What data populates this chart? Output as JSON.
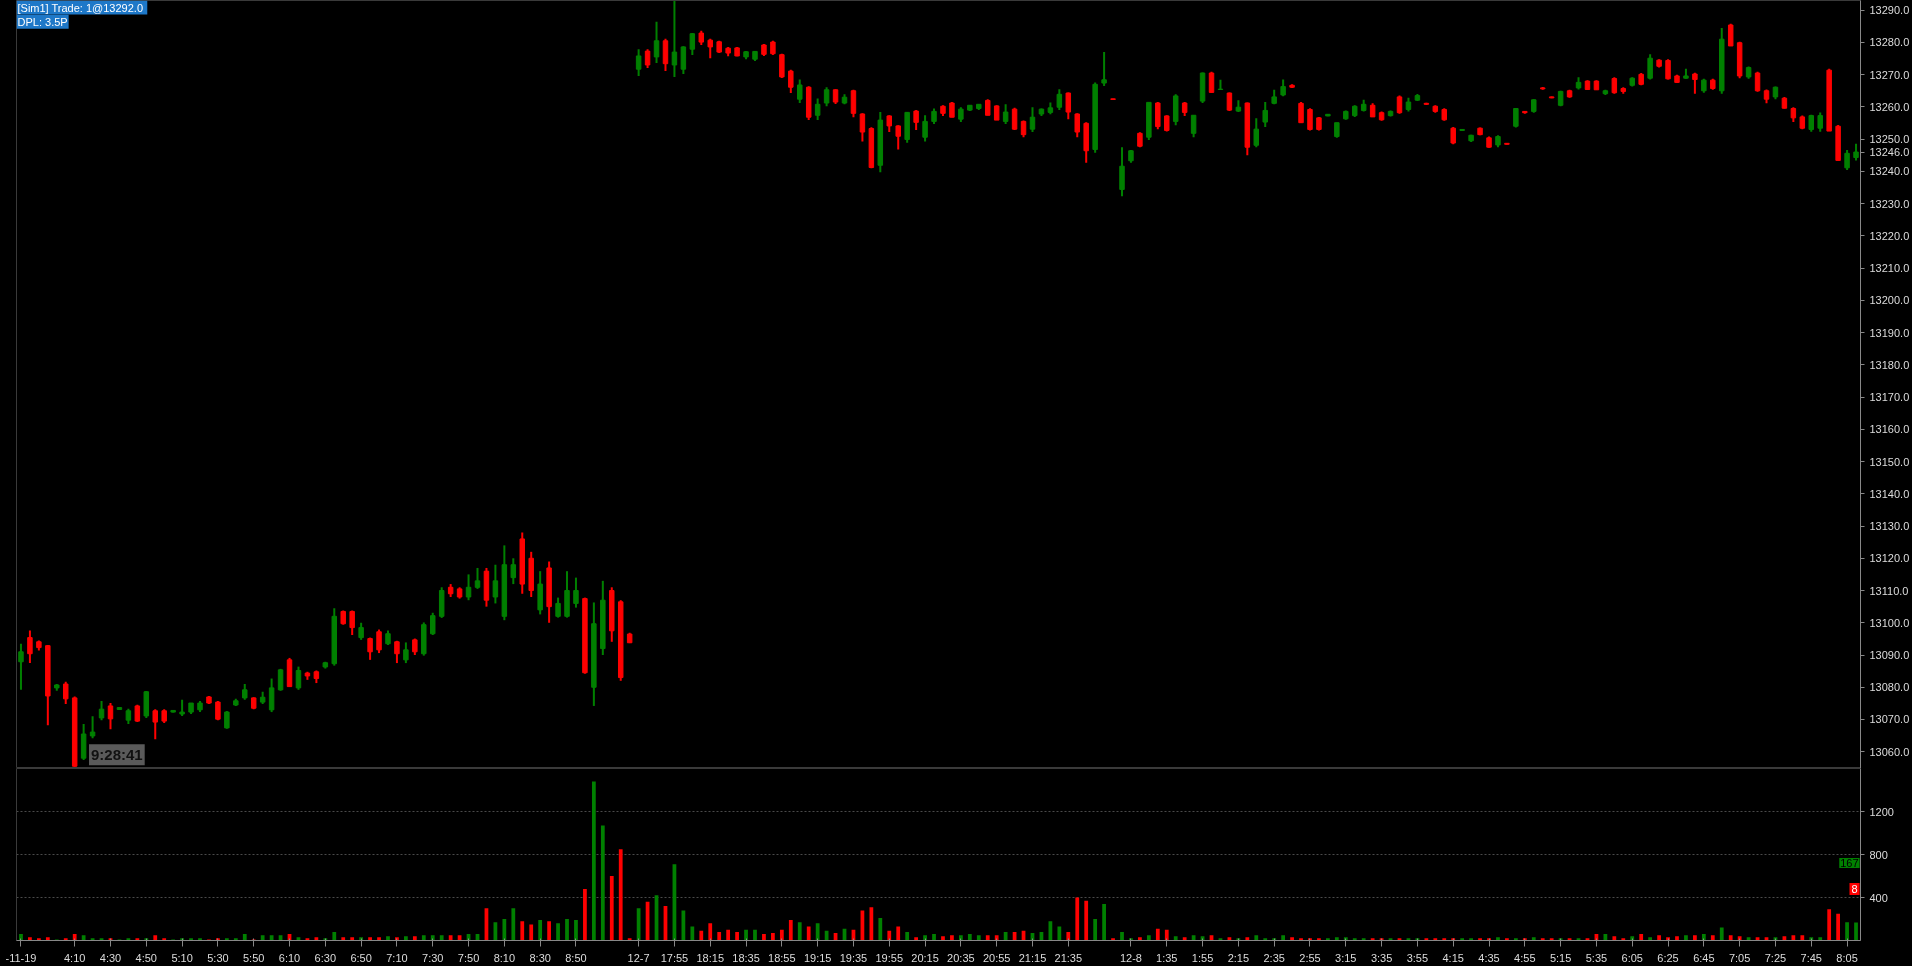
{
  "chart_data": [
    {
      "type": "candlestick",
      "annotations": [
        "[Sim1]  Trade: 1@13292.0",
        "DPL: 3.5P",
        "9:28:41"
      ],
      "categories": [
        "-11-19",
        null,
        null,
        null,
        null,
        null,
        "4:10",
        null,
        null,
        null,
        "4:30",
        null,
        null,
        null,
        "4:50",
        null,
        null,
        null,
        "5:10",
        null,
        null,
        null,
        "5:30",
        null,
        null,
        null,
        "5:50",
        null,
        null,
        null,
        "6:10",
        null,
        null,
        null,
        "6:30",
        null,
        null,
        null,
        "6:50",
        null,
        null,
        null,
        "7:10",
        null,
        null,
        null,
        "7:30",
        null,
        null,
        null,
        "7:50",
        null,
        null,
        null,
        "8:10",
        null,
        null,
        null,
        "8:30",
        null,
        null,
        null,
        "8:50",
        null,
        null,
        null,
        null,
        null,
        null,
        "12-7",
        null,
        null,
        null,
        "17:55",
        null,
        null,
        null,
        "18:15",
        null,
        null,
        null,
        "18:35",
        null,
        null,
        null,
        "18:55",
        null,
        null,
        null,
        "19:15",
        null,
        null,
        null,
        "19:35",
        null,
        null,
        null,
        "19:55",
        null,
        null,
        null,
        "20:15",
        null,
        null,
        null,
        "20:35",
        null,
        null,
        null,
        "20:55",
        null,
        null,
        null,
        "21:15",
        null,
        null,
        null,
        "21:35",
        null,
        null,
        null,
        null,
        null,
        null,
        "12-8",
        null,
        null,
        null,
        "1:35",
        null,
        null,
        null,
        "1:55",
        null,
        null,
        null,
        "2:15",
        null,
        null,
        null,
        "2:35",
        null,
        null,
        null,
        "2:55",
        null,
        null,
        null,
        "3:15",
        null,
        null,
        null,
        "3:35",
        null,
        null,
        null,
        "3:55",
        null,
        null,
        null,
        "4:15",
        null,
        null,
        null,
        "4:35",
        null,
        null,
        null,
        "4:55",
        null,
        null,
        null,
        "5:15",
        null,
        null,
        null,
        "5:35",
        null,
        null,
        null,
        "6:05",
        null,
        null,
        null,
        "6:25",
        null,
        null,
        null,
        "6:45",
        null,
        null,
        null,
        "7:05",
        null,
        null,
        null,
        "7:25",
        null,
        null,
        null,
        "7:45",
        null,
        null,
        null,
        "8:05",
        null
      ],
      "ohlc": [
        [
          13087.9,
          13093.5,
          13079.2,
          13091.0
        ],
        [
          13095.4,
          13097.6,
          13087.5,
          13090.4
        ],
        [
          13094.1,
          13094.5,
          13091.4,
          13092.3
        ],
        [
          13092.9,
          13093.1,
          13068.2,
          13077.3
        ],
        [
          13079.8,
          13081.0,
          13078.9,
          13080.7
        ],
        [
          13081.0,
          13081.7,
          13074.8,
          13076.4
        ],
        [
          13076.7,
          13077.1,
          13055.3,
          13055.5
        ],
        [
          13058.0,
          13068.6,
          13057.4,
          13065.5
        ],
        [
          13064.9,
          13071.0,
          13064.2,
          13066.1
        ],
        [
          13070.5,
          13075.7,
          13069.8,
          13073.2
        ],
        [
          13074.2,
          13075.1,
          13067.0,
          13070.2
        ],
        [
          13073.1,
          13073.8,
          13073.0,
          13073.7
        ],
        [
          13069.8,
          13073.3,
          13068.6,
          13072.7
        ],
        [
          13074.2,
          13074.6,
          13069.2,
          13069.5
        ],
        [
          13071.1,
          13078.8,
          13070.5,
          13078.6
        ],
        [
          13072.7,
          13073.2,
          13063.9,
          13069.2
        ],
        [
          13072.7,
          13073.2,
          13068.9,
          13069.5
        ],
        [
          13072.3,
          13072.9,
          13072.2,
          13072.8
        ],
        [
          13071.7,
          13076.1,
          13071.1,
          13072.3
        ],
        [
          13072.3,
          13075.1,
          13071.7,
          13075.1
        ],
        [
          13073.0,
          13075.7,
          13072.3,
          13075.1
        ],
        [
          13077.0,
          13077.3,
          13074.8,
          13075.1
        ],
        [
          13075.4,
          13075.7,
          13069.8,
          13070.1
        ],
        [
          13067.4,
          13072.6,
          13067.1,
          13072.3
        ],
        [
          13074.5,
          13076.4,
          13074.2,
          13075.8
        ],
        [
          13076.7,
          13081.0,
          13076.1,
          13079.2
        ],
        [
          13076.7,
          13076.9,
          13073.2,
          13073.5
        ],
        [
          13075.4,
          13078.6,
          13074.8,
          13076.9
        ],
        [
          13073.0,
          13082.7,
          13072.3,
          13079.8
        ],
        [
          13079.2,
          13085.7,
          13078.9,
          13085.4
        ],
        [
          13088.5,
          13089.1,
          13080.2,
          13080.2
        ],
        [
          13079.8,
          13086.4,
          13079.2,
          13085.2
        ],
        [
          13084.4,
          13084.8,
          13082.3,
          13083.5
        ],
        [
          13084.8,
          13085.2,
          13081.3,
          13082.7
        ],
        [
          13086.3,
          13087.9,
          13085.8,
          13087.6
        ],
        [
          13087.3,
          13104.5,
          13086.7,
          13102.0
        ],
        [
          13103.5,
          13103.8,
          13099.4,
          13099.7
        ],
        [
          13103.5,
          13103.8,
          13096.2,
          13098.5
        ],
        [
          13095.4,
          13100.0,
          13094.7,
          13098.5
        ],
        [
          13095.1,
          13095.4,
          13088.5,
          13091.0
        ],
        [
          13097.2,
          13097.9,
          13090.6,
          13091.6
        ],
        [
          13093.5,
          13097.6,
          13093.1,
          13096.6
        ],
        [
          13094.1,
          13094.4,
          13087.5,
          13090.4
        ],
        [
          13088.5,
          13093.9,
          13087.5,
          13091.6
        ],
        [
          13094.7,
          13095.1,
          13090.0,
          13091.0
        ],
        [
          13090.4,
          13100.1,
          13089.8,
          13099.4
        ],
        [
          13096.6,
          13103.1,
          13096.2,
          13102.2
        ],
        [
          13102.0,
          13111.0,
          13101.5,
          13110.0
        ],
        [
          13111.0,
          13112.0,
          13108.0,
          13109.0
        ],
        [
          13110.5,
          13111.0,
          13107.5,
          13108.0
        ],
        [
          13108.0,
          13115.0,
          13107.0,
          13111.0
        ],
        [
          13111.0,
          13117.0,
          13110.5,
          13113.0
        ],
        [
          13116.0,
          13117.0,
          13105.0,
          13107.0
        ],
        [
          13108.0,
          13118.0,
          13106.0,
          13113.0
        ],
        [
          13102.0,
          13124.0,
          13100.8,
          13118.0
        ],
        [
          13114.0,
          13120.0,
          13112.0,
          13118.0
        ],
        [
          13126.0,
          13128.0,
          13109.0,
          13112.0
        ],
        [
          13120.0,
          13122.0,
          13108.0,
          13110.0
        ],
        [
          13104.0,
          13116.0,
          13102.6,
          13112.0
        ],
        [
          13117.0,
          13119.0,
          13100.0,
          13105.0
        ],
        [
          13102.0,
          13107.8,
          13101.6,
          13106.0
        ],
        [
          13102.0,
          13116.0,
          13101.6,
          13110.0
        ],
        [
          13106.0,
          13114.0,
          13104.7,
          13110.0
        ],
        [
          13107.5,
          13107.8,
          13084.2,
          13084.5
        ],
        [
          13080.0,
          13106.3,
          13074.2,
          13099.7
        ],
        [
          13092.0,
          13113.0,
          13090.0,
          13107.0
        ],
        [
          13110.0,
          13111.0,
          13094.1,
          13097.5
        ],
        [
          13106.5,
          13107.0,
          13082.0,
          13083.0
        ],
        [
          13096.5,
          13096.9,
          13093.7,
          13093.8
        ],
        [
          13271.7,
          13277.9,
          13269.6,
          13275.8
        ],
        [
          13277.3,
          13277.9,
          13272.1,
          13273.0
        ],
        [
          13275.5,
          13286.4,
          13273.6,
          13280.5
        ],
        [
          13280.5,
          13281.1,
          13271.1,
          13273.4
        ],
        [
          13273.0,
          13292.9,
          13269.3,
          13277.0
        ],
        [
          13271.7,
          13278.8,
          13270.2,
          13278.6
        ],
        [
          13277.9,
          13282.9,
          13276.1,
          13282.7
        ],
        [
          13282.9,
          13283.6,
          13279.2,
          13280.1
        ],
        [
          13280.7,
          13281.1,
          13275.1,
          13278.6
        ],
        [
          13280.2,
          13280.5,
          13276.7,
          13277.0
        ],
        [
          13278.2,
          13278.6,
          13275.7,
          13276.7
        ],
        [
          13278.3,
          13278.6,
          13275.7,
          13275.8
        ],
        [
          13275.5,
          13277.3,
          13274.8,
          13277.1
        ],
        [
          13274.8,
          13277.3,
          13274.2,
          13277.2
        ],
        [
          13279.2,
          13279.5,
          13275.8,
          13276.3
        ],
        [
          13280.1,
          13280.5,
          13276.1,
          13276.5
        ],
        [
          13276.2,
          13276.5,
          13269.0,
          13269.3
        ],
        [
          13271.1,
          13271.5,
          13264.3,
          13266.1
        ],
        [
          13262.4,
          13268.5,
          13261.2,
          13266.8
        ],
        [
          13266.1,
          13266.4,
          13255.9,
          13256.8
        ],
        [
          13257.4,
          13262.6,
          13255.9,
          13260.8
        ],
        [
          13261.2,
          13266.1,
          13260.2,
          13265.3
        ],
        [
          13265.3,
          13265.5,
          13260.9,
          13261.5
        ],
        [
          13261.2,
          13263.9,
          13260.8,
          13263.0
        ],
        [
          13265.0,
          13265.3,
          13256.8,
          13258.0
        ],
        [
          13257.8,
          13258.0,
          13249.3,
          13252.2
        ],
        [
          13253.3,
          13253.7,
          13241.0,
          13241.2
        ],
        [
          13241.9,
          13258.4,
          13239.7,
          13255.9
        ],
        [
          13257.2,
          13257.4,
          13252.2,
          13254.1
        ],
        [
          13254.1,
          13254.3,
          13246.8,
          13250.9
        ],
        [
          13249.9,
          13258.4,
          13248.9,
          13258.3
        ],
        [
          13258.7,
          13259.0,
          13252.8,
          13255.2
        ],
        [
          13250.6,
          13257.4,
          13249.3,
          13255.5
        ],
        [
          13255.5,
          13259.5,
          13254.7,
          13258.6
        ],
        [
          13260.2,
          13260.5,
          13257.2,
          13258.0
        ],
        [
          13261.2,
          13261.5,
          13256.8,
          13256.8
        ],
        [
          13256.2,
          13259.9,
          13255.3,
          13259.3
        ],
        [
          13259.0,
          13260.5,
          13258.7,
          13260.5
        ],
        [
          13259.5,
          13260.8,
          13259.0,
          13260.8
        ],
        [
          13262.0,
          13262.4,
          13257.4,
          13257.4
        ],
        [
          13260.3,
          13260.5,
          13255.9,
          13255.9
        ],
        [
          13255.5,
          13260.8,
          13254.7,
          13258.4
        ],
        [
          13259.3,
          13259.7,
          13252.8,
          13253.1
        ],
        [
          13255.5,
          13255.8,
          13250.6,
          13251.4
        ],
        [
          13253.1,
          13259.9,
          13252.2,
          13256.8
        ],
        [
          13257.8,
          13259.5,
          13257.2,
          13259.3
        ],
        [
          13258.3,
          13261.4,
          13257.7,
          13259.7
        ],
        [
          13259.9,
          13265.5,
          13259.0,
          13263.9
        ],
        [
          13264.3,
          13264.5,
          13256.2,
          13258.4
        ],
        [
          13257.8,
          13258.0,
          13250.6,
          13252.2
        ],
        [
          13254.9,
          13255.2,
          13242.7,
          13246.4
        ],
        [
          13246.8,
          13267.6,
          13245.8,
          13267.0
        ],
        [
          13267.4,
          13277.0,
          13266.5,
          13268.4
        ],
        [
          13262.5,
          13262.5,
          13262.3,
          13262.3
        ],
        [
          13234.4,
          13247.5,
          13232.3,
          13241.6
        ],
        [
          13243.3,
          13246.6,
          13242.7,
          13246.4
        ],
        [
          13251.8,
          13252.1,
          13247.5,
          13247.8
        ],
        [
          13250.6,
          13261.4,
          13249.7,
          13261.4
        ],
        [
          13261.2,
          13261.5,
          13253.1,
          13253.9
        ],
        [
          13257.2,
          13257.4,
          13252.4,
          13252.7
        ],
        [
          13255.5,
          13263.9,
          13254.3,
          13263.4
        ],
        [
          13261.2,
          13261.5,
          13257.2,
          13258.3
        ],
        [
          13251.8,
          13257.4,
          13250.6,
          13257.4
        ],
        [
          13261.8,
          13270.7,
          13261.2,
          13270.5
        ],
        [
          13270.5,
          13270.9,
          13264.5,
          13264.5
        ],
        [
          13265.4,
          13268.4,
          13265.3,
          13265.5
        ],
        [
          13264.3,
          13264.5,
          13258.7,
          13259.0
        ],
        [
          13258.7,
          13262.1,
          13258.4,
          13259.9
        ],
        [
          13261.2,
          13261.4,
          13245.0,
          13247.5
        ],
        [
          13248.1,
          13256.5,
          13247.5,
          13253.1
        ],
        [
          13255.3,
          13261.5,
          13253.8,
          13258.9
        ],
        [
          13261.1,
          13265.3,
          13260.8,
          13263.1
        ],
        [
          13263.7,
          13268.5,
          13263.3,
          13266.3
        ],
        [
          13266.7,
          13267.0,
          13265.9,
          13266.1
        ],
        [
          13261.1,
          13261.5,
          13255.1,
          13255.1
        ],
        [
          13259.2,
          13259.6,
          13252.7,
          13253.0
        ],
        [
          13256.6,
          13256.9,
          13252.7,
          13253.0
        ],
        [
          13257.2,
          13257.8,
          13257.1,
          13257.7
        ],
        [
          13250.8,
          13255.1,
          13250.4,
          13255.1
        ],
        [
          13256.3,
          13258.9,
          13256.0,
          13258.6
        ],
        [
          13257.3,
          13260.5,
          13256.9,
          13260.2
        ],
        [
          13258.9,
          13262.2,
          13258.6,
          13260.8
        ],
        [
          13260.5,
          13261.1,
          13256.9,
          13256.9
        ],
        [
          13258.2,
          13258.6,
          13255.7,
          13256.0
        ],
        [
          13257.3,
          13258.9,
          13257.0,
          13258.6
        ],
        [
          13263.1,
          13263.5,
          13257.9,
          13258.2
        ],
        [
          13259.2,
          13262.8,
          13258.6,
          13261.5
        ],
        [
          13262.1,
          13264.0,
          13261.8,
          13263.5
        ],
        [
          13261.1,
          13261.3,
          13260.6,
          13260.8
        ],
        [
          13260.2,
          13260.5,
          13258.2,
          13258.6
        ],
        [
          13259.2,
          13259.6,
          13255.7,
          13256.0
        ],
        [
          13253.4,
          13253.8,
          13248.4,
          13248.8
        ],
        [
          13252.7,
          13253.1,
          13252.6,
          13253.0
        ],
        [
          13249.5,
          13251.4,
          13249.1,
          13251.2
        ],
        [
          13253.4,
          13253.6,
          13251.2,
          13251.4
        ],
        [
          13250.4,
          13250.8,
          13247.3,
          13247.5
        ],
        [
          13248.2,
          13251.2,
          13247.5,
          13250.8
        ],
        [
          13248.7,
          13248.8,
          13248.3,
          13248.4
        ],
        [
          13254.0,
          13259.6,
          13253.6,
          13259.5
        ],
        [
          13258.6,
          13258.7,
          13257.9,
          13258.2
        ],
        [
          13258.6,
          13262.4,
          13258.2,
          13262.2
        ],
        [
          13265.9,
          13266.2,
          13265.3,
          13265.6
        ],
        [
          13263.1,
          13263.2,
          13262.7,
          13262.8
        ],
        [
          13260.5,
          13265.0,
          13260.2,
          13264.8
        ],
        [
          13265.0,
          13265.3,
          13262.8,
          13263.1
        ],
        [
          13265.9,
          13269.2,
          13265.4,
          13267.6
        ],
        [
          13268.0,
          13268.3,
          13265.4,
          13265.4
        ],
        [
          13268.0,
          13268.3,
          13265.3,
          13265.3
        ],
        [
          13264.1,
          13265.3,
          13263.7,
          13265.0
        ],
        [
          13268.8,
          13269.2,
          13264.1,
          13264.4
        ],
        [
          13265.7,
          13266.1,
          13264.1,
          13264.8
        ],
        [
          13266.7,
          13269.2,
          13266.3,
          13268.9
        ],
        [
          13270.1,
          13270.5,
          13266.7,
          13267.0
        ],
        [
          13268.9,
          13276.3,
          13268.5,
          13275.1
        ],
        [
          13274.5,
          13274.8,
          13272.2,
          13272.6
        ],
        [
          13274.4,
          13274.8,
          13268.5,
          13268.7
        ],
        [
          13269.6,
          13270.0,
          13267.4,
          13267.6
        ],
        [
          13268.9,
          13271.8,
          13268.7,
          13269.6
        ],
        [
          13270.2,
          13270.6,
          13264.1,
          13268.5
        ],
        [
          13265.0,
          13268.7,
          13264.4,
          13268.3
        ],
        [
          13268.3,
          13268.7,
          13265.3,
          13265.7
        ],
        [
          13265.0,
          13284.5,
          13264.1,
          13281.0
        ],
        [
          13285.4,
          13285.8,
          13278.9,
          13278.9
        ],
        [
          13279.9,
          13280.2,
          13268.9,
          13269.6
        ],
        [
          13269.3,
          13272.5,
          13268.7,
          13272.2
        ],
        [
          13270.5,
          13270.9,
          13264.7,
          13265.0
        ],
        [
          13265.0,
          13265.4,
          13261.1,
          13262.4
        ],
        [
          13263.1,
          13266.3,
          13262.4,
          13266.1
        ],
        [
          13262.7,
          13263.1,
          13259.5,
          13259.6
        ],
        [
          13259.5,
          13259.9,
          13255.3,
          13256.6
        ],
        [
          13256.9,
          13257.3,
          13253.1,
          13253.4
        ],
        [
          13253.0,
          13257.6,
          13252.3,
          13257.3
        ],
        [
          13253.4,
          13258.3,
          13252.3,
          13257.3
        ],
        [
          13271.4,
          13271.8,
          13252.5,
          13252.5
        ],
        [
          13254.0,
          13254.4,
          13243.4,
          13243.4
        ],
        [
          13241.1,
          13246.6,
          13240.4,
          13245.6
        ],
        [
          13244.3,
          13248.6,
          13243.4,
          13246.0
        ]
      ],
      "colors": [
        "#008000",
        "#ff0000",
        "#ff0000",
        "#ff0000",
        "#008000",
        "#ff0000",
        "#ff0000",
        "#008000",
        "#008000",
        "#008000",
        "#ff0000",
        "#008000",
        "#008000",
        "#ff0000",
        "#008000",
        "#ff0000",
        "#ff0000",
        "#008000",
        "#008000",
        "#008000",
        "#008000",
        "#ff0000",
        "#ff0000",
        "#008000",
        "#008000",
        "#008000",
        "#ff0000",
        "#008000",
        "#008000",
        "#008000",
        "#ff0000",
        "#008000",
        "#ff0000",
        "#ff0000",
        "#008000",
        "#008000",
        "#ff0000",
        "#ff0000",
        "#008000",
        "#ff0000",
        "#ff0000",
        "#008000",
        "#ff0000",
        "#008000",
        "#ff0000",
        "#008000",
        "#008000",
        "#008000",
        "#ff0000",
        "#ff0000",
        "#008000",
        "#008000",
        "#ff0000",
        "#008000",
        "#008000",
        "#008000",
        "#ff0000",
        "#ff0000",
        "#008000",
        "#ff0000",
        "#008000",
        "#008000",
        "#008000",
        "#ff0000",
        "#008000",
        "#008000",
        "#ff0000",
        "#ff0000",
        "#ff0000",
        "#008000",
        "#ff0000",
        "#008000",
        "#ff0000",
        "#008000",
        "#008000",
        "#008000",
        "#ff0000",
        "#ff0000",
        "#ff0000",
        "#ff0000",
        "#ff0000",
        "#008000",
        "#008000",
        "#ff0000",
        "#ff0000",
        "#ff0000",
        "#ff0000",
        "#008000",
        "#ff0000",
        "#008000",
        "#008000",
        "#ff0000",
        "#008000",
        "#ff0000",
        "#ff0000",
        "#ff0000",
        "#008000",
        "#ff0000",
        "#ff0000",
        "#008000",
        "#ff0000",
        "#008000",
        "#008000",
        "#ff0000",
        "#ff0000",
        "#008000",
        "#008000",
        "#008000",
        "#ff0000",
        "#ff0000",
        "#008000",
        "#ff0000",
        "#ff0000",
        "#008000",
        "#008000",
        "#008000",
        "#008000",
        "#ff0000",
        "#ff0000",
        "#ff0000",
        "#008000",
        "#008000",
        "#ff0000",
        "#008000",
        "#008000",
        "#ff0000",
        "#008000",
        "#ff0000",
        "#ff0000",
        "#008000",
        "#ff0000",
        "#008000",
        "#008000",
        "#ff0000",
        "#008000",
        "#ff0000",
        "#008000",
        "#ff0000",
        "#008000",
        "#008000",
        "#008000",
        "#008000",
        "#ff0000",
        "#ff0000",
        "#ff0000",
        "#ff0000",
        "#008000",
        "#008000",
        "#008000",
        "#008000",
        "#008000",
        "#ff0000",
        "#ff0000",
        "#008000",
        "#ff0000",
        "#008000",
        "#008000",
        "#ff0000",
        "#ff0000",
        "#ff0000",
        "#ff0000",
        "#008000",
        "#008000",
        "#ff0000",
        "#ff0000",
        "#008000",
        "#ff0000",
        "#008000",
        "#ff0000",
        "#008000",
        "#ff0000",
        "#ff0000",
        "#008000",
        "#ff0000",
        "#008000",
        "#ff0000",
        "#ff0000",
        "#008000",
        "#ff0000",
        "#ff0000",
        "#008000",
        "#ff0000",
        "#008000",
        "#ff0000",
        "#ff0000",
        "#ff0000",
        "#008000",
        "#ff0000",
        "#008000",
        "#ff0000",
        "#008000",
        "#ff0000",
        "#ff0000",
        "#008000",
        "#ff0000",
        "#ff0000",
        "#008000",
        "#ff0000",
        "#ff0000",
        "#ff0000",
        "#008000",
        "#008000",
        "#ff0000",
        "#ff0000",
        "#008000",
        "#008000"
      ],
      "ylim": [
        13054.8,
        13293
      ],
      "yticks": [
        {
          "value": 13060,
          "label": "13060.0"
        },
        {
          "value": 13070,
          "label": "13070.0"
        },
        {
          "value": 13080,
          "label": "13080.0"
        },
        {
          "value": 13090,
          "label": "13090.0"
        },
        {
          "value": 13100,
          "label": "13100.0"
        },
        {
          "value": 13110,
          "label": "13110.0"
        },
        {
          "value": 13120,
          "label": "13120.0"
        },
        {
          "value": 13130,
          "label": "13130.0"
        },
        {
          "value": 13140,
          "label": "13140.0"
        },
        {
          "value": 13150,
          "label": "13150.0"
        },
        {
          "value": 13160,
          "label": "13160.0"
        },
        {
          "value": 13170,
          "label": "13170.0"
        },
        {
          "value": 13180,
          "label": "13180.0"
        },
        {
          "value": 13190,
          "label": "13190.0"
        },
        {
          "value": 13200,
          "label": "13200.0"
        },
        {
          "value": 13210,
          "label": "13210.0"
        },
        {
          "value": 13220,
          "label": "13220.0"
        },
        {
          "value": 13230,
          "label": "13230.0"
        },
        {
          "value": 13240,
          "label": "13240.0"
        },
        {
          "value": 13246,
          "label": "13246.0"
        },
        {
          "value": 13250,
          "label": "13250.0"
        },
        {
          "value": 13260,
          "label": "13260.0"
        },
        {
          "value": 13270,
          "label": "13270.0"
        },
        {
          "value": 13280,
          "label": "13280.0"
        },
        {
          "value": 13290,
          "label": "13290.0"
        }
      ],
      "tick_labels": "y"
    },
    {
      "type": "bar",
      "annotations": [
        "167",
        "8"
      ],
      "categories": [
        "-11-19",
        null,
        null,
        null,
        null,
        null,
        "4:10",
        null,
        null,
        null,
        "4:30",
        null,
        null,
        null,
        "4:50",
        null,
        null,
        null,
        "5:10",
        null,
        null,
        null,
        "5:30",
        null,
        null,
        null,
        "5:50",
        null,
        null,
        null,
        "6:10",
        null,
        null,
        null,
        "6:30",
        null,
        null,
        null,
        "6:50",
        null,
        null,
        null,
        "7:10",
        null,
        null,
        null,
        "7:30",
        null,
        null,
        null,
        "7:50",
        null,
        null,
        null,
        "8:10",
        null,
        null,
        null,
        "8:30",
        null,
        null,
        null,
        "8:50",
        null,
        null,
        null,
        null,
        null,
        null,
        "12-7",
        null,
        null,
        null,
        "17:55",
        null,
        null,
        null,
        "18:15",
        null,
        null,
        null,
        "18:35",
        null,
        null,
        null,
        "18:55",
        null,
        null,
        null,
        "19:15",
        null,
        null,
        null,
        "19:35",
        null,
        null,
        null,
        "19:55",
        null,
        null,
        null,
        "20:15",
        null,
        null,
        null,
        "20:35",
        null,
        null,
        null,
        "20:55",
        null,
        null,
        null,
        "21:15",
        null,
        null,
        null,
        "21:35",
        null,
        null,
        null,
        null,
        null,
        null,
        "12-8",
        null,
        null,
        null,
        "1:35",
        null,
        null,
        null,
        "1:55",
        null,
        null,
        null,
        "2:15",
        null,
        null,
        null,
        "2:35",
        null,
        null,
        null,
        "2:55",
        null,
        null,
        null,
        "3:15",
        null,
        null,
        null,
        "3:35",
        null,
        null,
        null,
        "3:55",
        null,
        null,
        null,
        "4:15",
        null,
        null,
        null,
        "4:35",
        null,
        null,
        null,
        "4:55",
        null,
        null,
        null,
        "5:15",
        null,
        null,
        null,
        "5:35",
        null,
        null,
        null,
        "6:05",
        null,
        null,
        null,
        "6:25",
        null,
        null,
        null,
        "6:45",
        null,
        null,
        null,
        "7:05",
        null,
        null,
        null,
        "7:25",
        null,
        null,
        null,
        "7:45",
        null,
        null,
        null,
        "8:05",
        null
      ],
      "values": [
        60,
        30,
        20,
        30,
        10,
        20,
        60,
        50,
        20,
        20,
        20,
        10,
        20,
        20,
        20,
        50,
        20,
        10,
        20,
        20,
        20,
        10,
        20,
        20,
        20,
        60,
        10,
        50,
        50,
        50,
        60,
        30,
        20,
        30,
        20,
        80,
        30,
        30,
        30,
        30,
        30,
        40,
        30,
        40,
        40,
        50,
        50,
        50,
        50,
        50,
        60,
        60,
        300,
        170,
        200,
        300,
        180,
        150,
        190,
        180,
        160,
        200,
        190,
        480,
        1480,
        1070,
        600,
        850,
        20,
        300,
        360,
        420,
        320,
        710,
        280,
        130,
        90,
        160,
        80,
        100,
        80,
        100,
        100,
        60,
        70,
        100,
        190,
        170,
        130,
        160,
        90,
        70,
        110,
        100,
        280,
        310,
        210,
        90,
        130,
        80,
        30,
        50,
        60,
        40,
        50,
        50,
        60,
        50,
        50,
        50,
        80,
        80,
        90,
        70,
        80,
        180,
        130,
        80,
        400,
        370,
        200,
        340,
        20,
        80,
        20,
        30,
        50,
        110,
        100,
        40,
        30,
        50,
        40,
        50,
        20,
        30,
        20,
        30,
        50,
        20,
        20,
        50,
        30,
        20,
        20,
        20,
        20,
        30,
        30,
        20,
        20,
        20,
        20,
        20,
        20,
        20,
        20,
        20,
        20,
        20,
        20,
        20,
        20,
        20,
        20,
        30,
        20,
        20,
        20,
        30,
        20,
        20,
        20,
        20,
        20,
        20,
        60,
        60,
        40,
        20,
        40,
        60,
        30,
        50,
        30,
        40,
        50,
        50,
        60,
        50,
        120,
        50,
        40,
        30,
        30,
        30,
        30,
        40,
        50,
        50,
        30,
        30,
        290,
        250,
        170,
        167
      ],
      "colors": [
        "#008000",
        "#ff0000",
        "#ff0000",
        "#ff0000",
        "#008000",
        "#ff0000",
        "#ff0000",
        "#008000",
        "#008000",
        "#008000",
        "#ff0000",
        "#008000",
        "#008000",
        "#ff0000",
        "#008000",
        "#ff0000",
        "#ff0000",
        "#008000",
        "#008000",
        "#008000",
        "#008000",
        "#ff0000",
        "#ff0000",
        "#008000",
        "#008000",
        "#008000",
        "#ff0000",
        "#008000",
        "#008000",
        "#008000",
        "#ff0000",
        "#008000",
        "#ff0000",
        "#ff0000",
        "#008000",
        "#008000",
        "#ff0000",
        "#ff0000",
        "#008000",
        "#ff0000",
        "#ff0000",
        "#008000",
        "#ff0000",
        "#008000",
        "#ff0000",
        "#008000",
        "#008000",
        "#008000",
        "#ff0000",
        "#ff0000",
        "#008000",
        "#008000",
        "#ff0000",
        "#008000",
        "#008000",
        "#008000",
        "#ff0000",
        "#ff0000",
        "#008000",
        "#ff0000",
        "#008000",
        "#008000",
        "#008000",
        "#ff0000",
        "#008000",
        "#008000",
        "#ff0000",
        "#ff0000",
        "#ff0000",
        "#008000",
        "#ff0000",
        "#008000",
        "#ff0000",
        "#008000",
        "#008000",
        "#008000",
        "#ff0000",
        "#ff0000",
        "#ff0000",
        "#ff0000",
        "#ff0000",
        "#008000",
        "#008000",
        "#ff0000",
        "#ff0000",
        "#ff0000",
        "#ff0000",
        "#008000",
        "#ff0000",
        "#008000",
        "#008000",
        "#ff0000",
        "#008000",
        "#ff0000",
        "#ff0000",
        "#ff0000",
        "#008000",
        "#ff0000",
        "#ff0000",
        "#008000",
        "#ff0000",
        "#008000",
        "#008000",
        "#ff0000",
        "#ff0000",
        "#008000",
        "#008000",
        "#008000",
        "#ff0000",
        "#ff0000",
        "#008000",
        "#ff0000",
        "#ff0000",
        "#008000",
        "#008000",
        "#008000",
        "#008000",
        "#ff0000",
        "#ff0000",
        "#ff0000",
        "#008000",
        "#008000",
        "#ff0000",
        "#008000",
        "#008000",
        "#ff0000",
        "#008000",
        "#ff0000",
        "#ff0000",
        "#008000",
        "#ff0000",
        "#008000",
        "#008000",
        "#ff0000",
        "#008000",
        "#ff0000",
        "#008000",
        "#ff0000",
        "#008000",
        "#008000",
        "#008000",
        "#008000",
        "#ff0000",
        "#ff0000",
        "#ff0000",
        "#ff0000",
        "#008000",
        "#008000",
        "#008000",
        "#008000",
        "#008000",
        "#ff0000",
        "#ff0000",
        "#008000",
        "#ff0000",
        "#008000",
        "#008000",
        "#ff0000",
        "#ff0000",
        "#ff0000",
        "#ff0000",
        "#008000",
        "#008000",
        "#ff0000",
        "#ff0000",
        "#008000",
        "#ff0000",
        "#008000",
        "#ff0000",
        "#008000",
        "#ff0000",
        "#ff0000",
        "#008000",
        "#ff0000",
        "#008000",
        "#ff0000",
        "#ff0000",
        "#008000",
        "#ff0000",
        "#ff0000",
        "#008000",
        "#ff0000",
        "#008000",
        "#ff0000",
        "#ff0000",
        "#ff0000",
        "#008000",
        "#ff0000",
        "#008000",
        "#ff0000",
        "#008000",
        "#ff0000",
        "#ff0000",
        "#008000",
        "#ff0000",
        "#ff0000",
        "#008000",
        "#ff0000",
        "#ff0000",
        "#ff0000",
        "#008000",
        "#008000",
        "#ff0000",
        "#ff0000",
        "#008000",
        "#008000"
      ],
      "ylim": [
        0,
        1600
      ],
      "yticks": [
        400,
        800,
        1200
      ],
      "grid": "y"
    }
  ]
}
